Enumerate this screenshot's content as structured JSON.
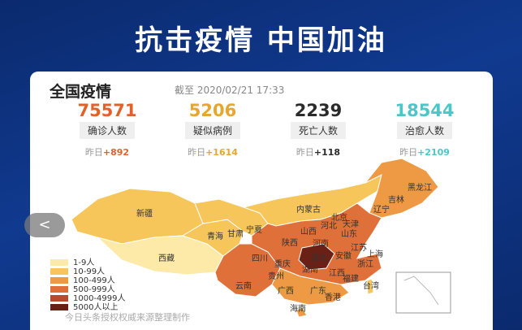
{
  "banner": {
    "title": "抗击疫情 中国加油"
  },
  "card": {
    "title": "全国疫情",
    "timestamp": "截至 2020/02/21 17:33"
  },
  "stats": [
    {
      "value": "75571",
      "label": "确诊人数",
      "delta_prefix": "昨日",
      "delta": "+892",
      "color": "#e0622a"
    },
    {
      "value": "5206",
      "label": "疑似病例",
      "delta_prefix": "昨日",
      "delta": "+1614",
      "color": "#e8a531"
    },
    {
      "value": "2239",
      "label": "死亡人数",
      "delta_prefix": "昨日",
      "delta": "+118",
      "color": "#2b2b2b"
    },
    {
      "value": "18544",
      "label": "治愈人数",
      "delta_prefix": "昨日",
      "delta": "+2109",
      "color": "#4cc6c6"
    }
  ],
  "map": {
    "provinces": [
      "新疆",
      "西藏",
      "青海",
      "甘肃",
      "内蒙古",
      "宁夏",
      "陕西",
      "山西",
      "河北",
      "北京",
      "天津",
      "辽宁",
      "吉林",
      "黑龙江",
      "山东",
      "河南",
      "江苏",
      "安徽",
      "上海",
      "湖北",
      "浙江",
      "四川",
      "重庆",
      "湖南",
      "江西",
      "贵州",
      "福建",
      "云南",
      "广西",
      "广东",
      "台湾",
      "香港",
      "海南"
    ]
  },
  "legend": [
    {
      "label": "1-9人",
      "color": "#fde9a8"
    },
    {
      "label": "10-99人",
      "color": "#f6c65b"
    },
    {
      "label": "100-499人",
      "color": "#ee9a45"
    },
    {
      "label": "500-999人",
      "color": "#e0703a"
    },
    {
      "label": "1000-4999人",
      "color": "#b84a2e"
    },
    {
      "label": "5000人以上",
      "color": "#6b2015"
    }
  ],
  "footer": "今日头条授权权威来源整理制作",
  "nav": {
    "back": "<"
  }
}
